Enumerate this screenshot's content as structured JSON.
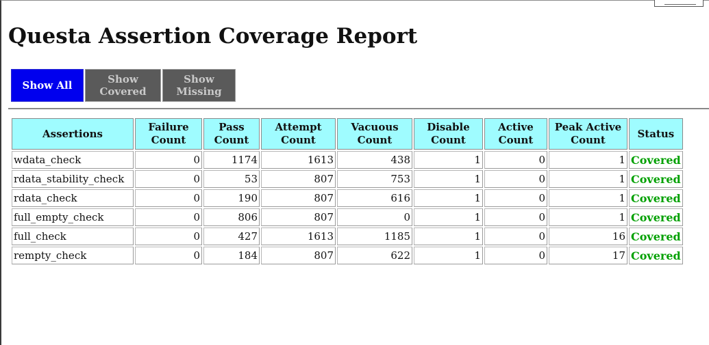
{
  "page": {
    "title": "Questa Assertion Coverage Report"
  },
  "filters": {
    "show_all": "Show All",
    "show_covered": "Show\nCovered",
    "show_missing": "Show\nMissing"
  },
  "colors": {
    "header_bg": "#9ffcff",
    "active_button": "#0000ee",
    "inactive_button": "#5a5a5a",
    "covered_text": "#00a000"
  },
  "table": {
    "headers": [
      "Assertions",
      "Failure\nCount",
      "Pass\nCount",
      "Attempt\nCount",
      "Vacuous\nCount",
      "Disable\nCount",
      "Active\nCount",
      "Peak Active\nCount",
      "Status"
    ],
    "rows": [
      [
        "wdata_check",
        "0",
        "1174",
        "1613",
        "438",
        "1",
        "0",
        "1",
        "Covered"
      ],
      [
        "rdata_stability_check",
        "0",
        "53",
        "807",
        "753",
        "1",
        "0",
        "1",
        "Covered"
      ],
      [
        "rdata_check",
        "0",
        "190",
        "807",
        "616",
        "1",
        "0",
        "1",
        "Covered"
      ],
      [
        "full_empty_check",
        "0",
        "806",
        "807",
        "0",
        "1",
        "0",
        "1",
        "Covered"
      ],
      [
        "full_check",
        "0",
        "427",
        "1613",
        "1185",
        "1",
        "0",
        "16",
        "Covered"
      ],
      [
        "rempty_check",
        "0",
        "184",
        "807",
        "622",
        "1",
        "0",
        "17",
        "Covered"
      ]
    ]
  }
}
